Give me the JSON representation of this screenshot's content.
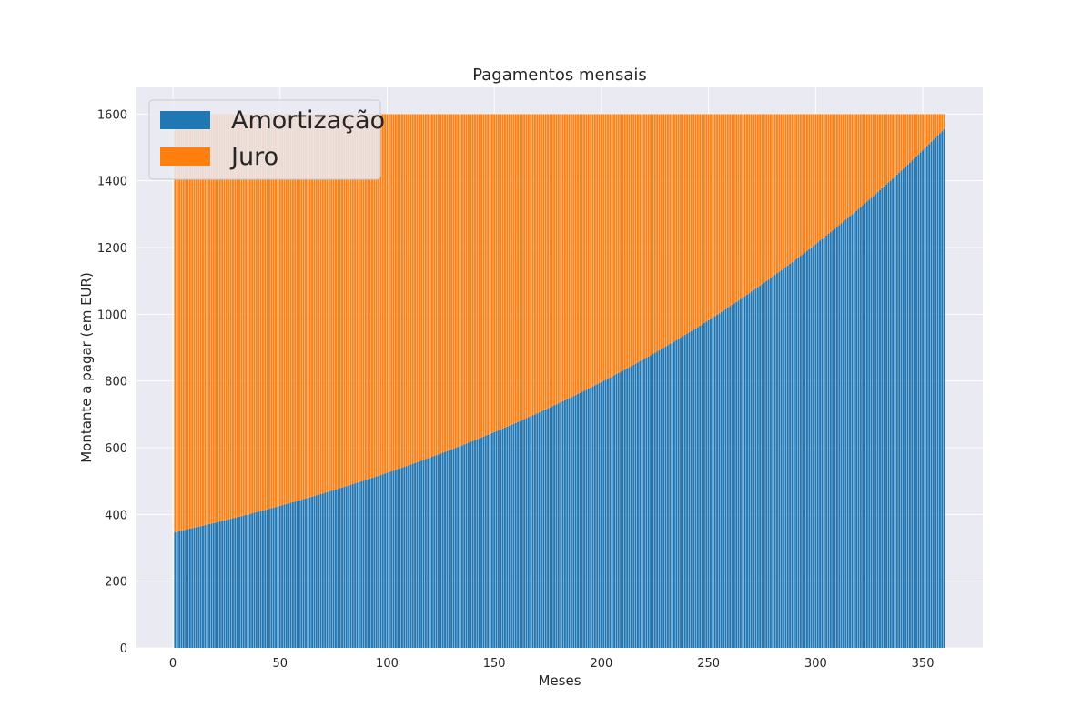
{
  "chart_data": {
    "type": "bar",
    "stacked": true,
    "title": "Pagamentos mensais",
    "xlabel": "Meses",
    "ylabel": "Montante a pagar (em EUR)",
    "xlim": [
      -17,
      378
    ],
    "ylim": [
      0,
      1680
    ],
    "xticks": [
      0,
      50,
      100,
      150,
      200,
      250,
      300,
      350
    ],
    "yticks": [
      0,
      200,
      400,
      600,
      800,
      1000,
      1200,
      1400,
      1600
    ],
    "grid": true,
    "legend_position": "top-left",
    "x_start": 1,
    "x_end": 360,
    "monthly_payment": 1600,
    "series": [
      {
        "name": "Amortização",
        "color": "#1f77b4",
        "first_value": 347,
        "last_value": 1555
      },
      {
        "name": "Juro",
        "color": "#ff7f0e",
        "first_value": 1253,
        "last_value": 45
      }
    ]
  }
}
